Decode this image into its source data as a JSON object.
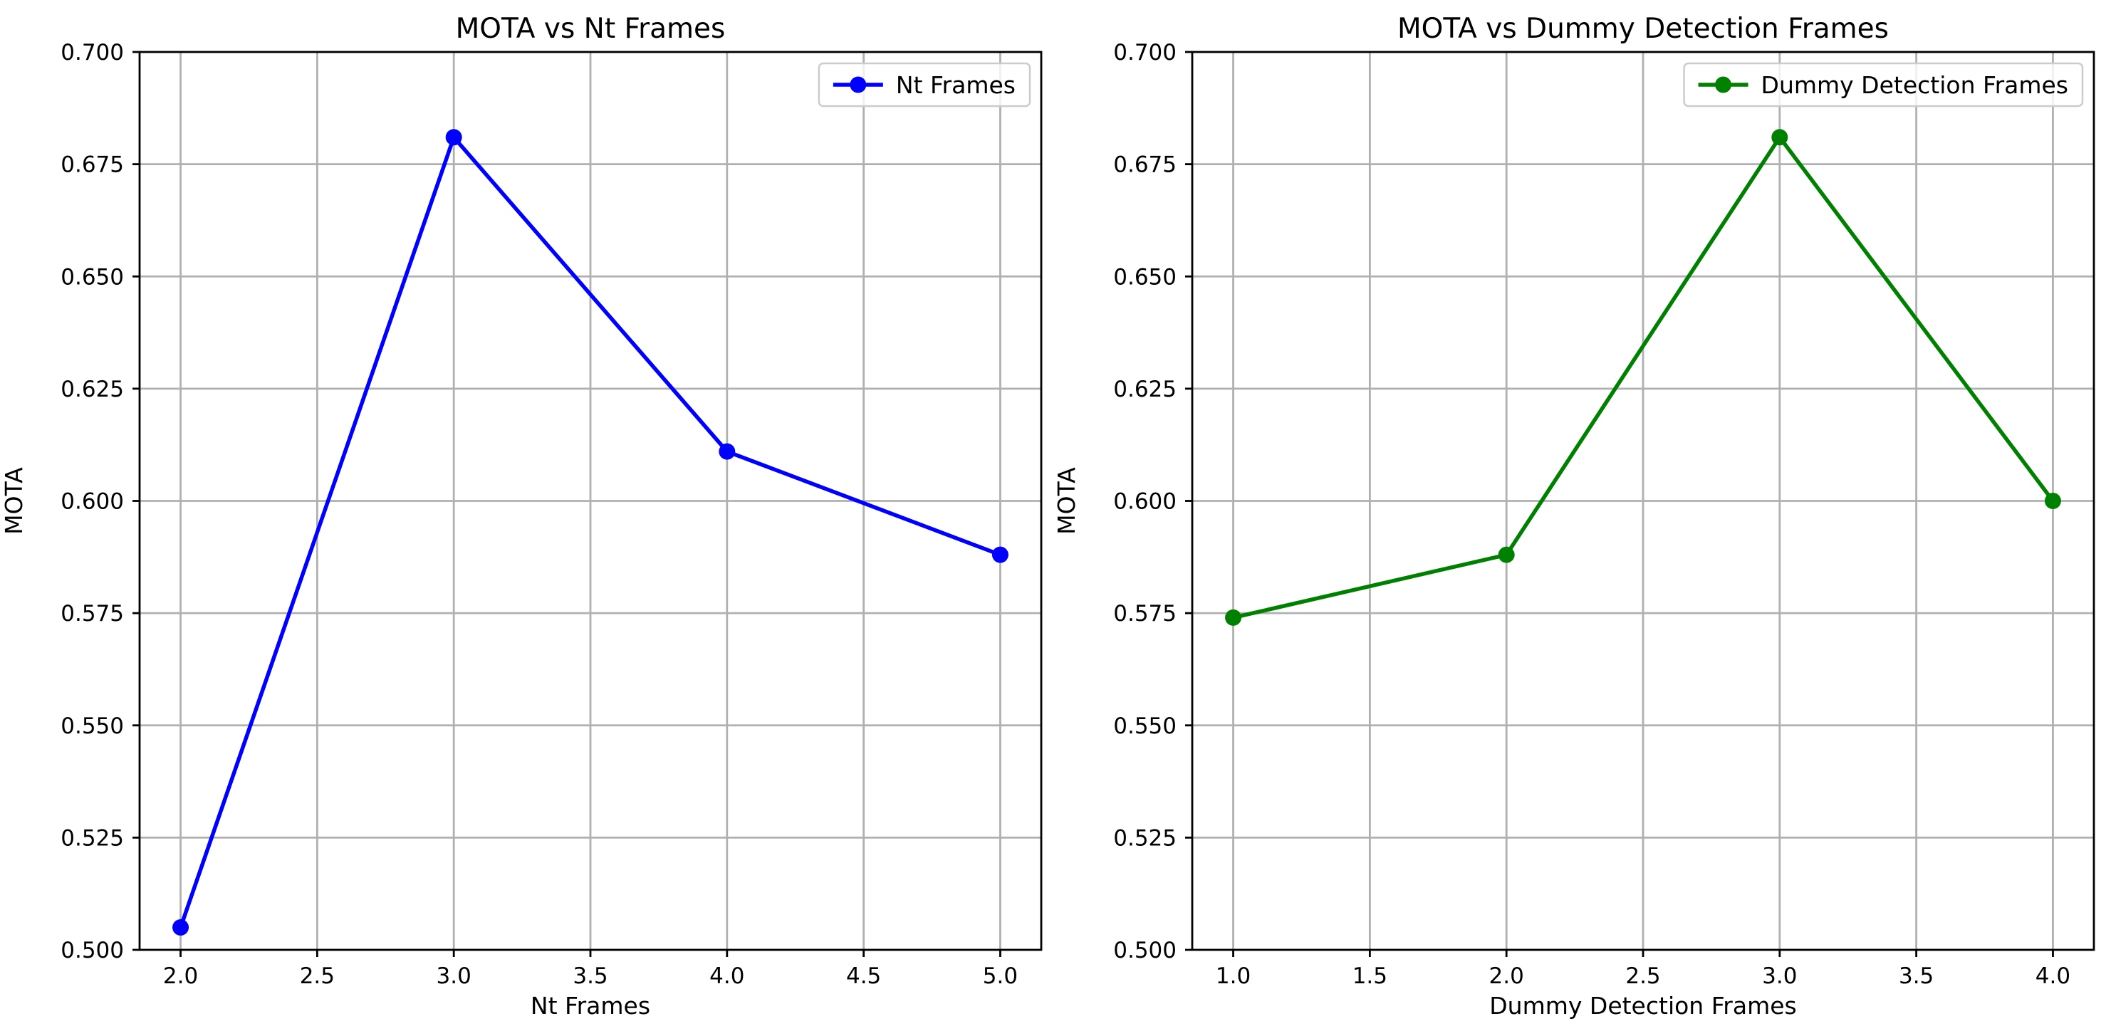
{
  "chart_data": [
    {
      "type": "line",
      "title": "MOTA vs Nt Frames",
      "xlabel": "Nt Frames",
      "ylabel": "MOTA",
      "xlim": [
        1.85,
        5.15
      ],
      "ylim": [
        0.5,
        0.7
      ],
      "xticks": [
        2.0,
        2.5,
        3.0,
        3.5,
        4.0,
        4.5,
        5.0
      ],
      "yticks": [
        0.5,
        0.525,
        0.55,
        0.575,
        0.6,
        0.625,
        0.65,
        0.675,
        0.7
      ],
      "grid": true,
      "legend_position": "top-right",
      "series": [
        {
          "name": "Nt Frames",
          "color": "#0000ff",
          "marker": "circle",
          "x": [
            2,
            3,
            4,
            5
          ],
          "y": [
            0.505,
            0.681,
            0.611,
            0.588
          ]
        }
      ]
    },
    {
      "type": "line",
      "title": "MOTA vs Dummy Detection Frames",
      "xlabel": "Dummy Detection Frames",
      "ylabel": "MOTA",
      "xlim": [
        0.85,
        4.15
      ],
      "ylim": [
        0.5,
        0.7
      ],
      "xticks": [
        1.0,
        1.5,
        2.0,
        2.5,
        3.0,
        3.5,
        4.0
      ],
      "yticks": [
        0.5,
        0.525,
        0.55,
        0.575,
        0.6,
        0.625,
        0.65,
        0.675,
        0.7
      ],
      "grid": true,
      "legend_position": "top-right",
      "series": [
        {
          "name": "Dummy Detection Frames",
          "color": "#008000",
          "marker": "circle",
          "x": [
            1,
            2,
            3,
            4
          ],
          "y": [
            0.574,
            0.588,
            0.681,
            0.6
          ]
        }
      ]
    }
  ]
}
